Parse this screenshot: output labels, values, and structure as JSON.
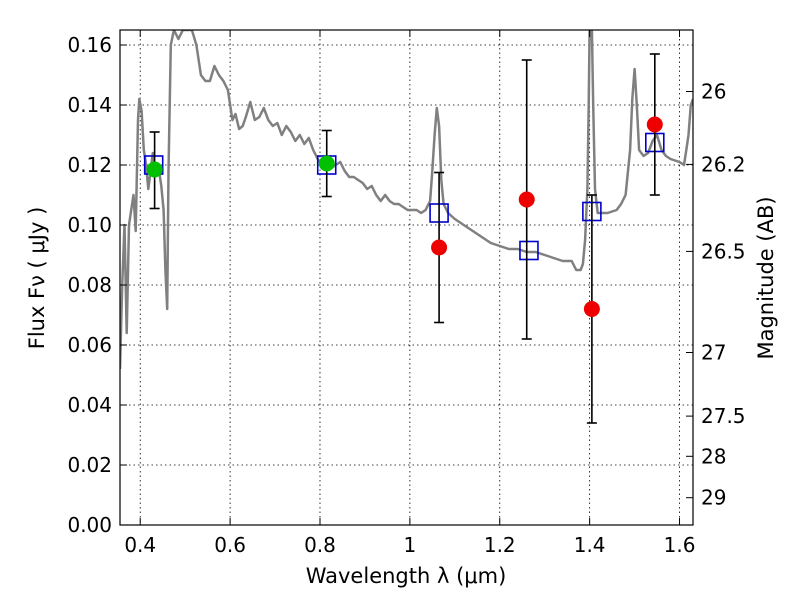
{
  "chart_data": {
    "type": "scatter",
    "xlabel": "Wavelength  λ (μm)",
    "ylabel": "Flux  Fν  ( μJy )",
    "ylabel_right": "Magnitude (AB)",
    "xlim": [
      0.355,
      1.63
    ],
    "ylim": [
      0.0,
      0.165
    ],
    "grid": true,
    "x_ticks": [
      {
        "value": 0.4,
        "label": "0.4"
      },
      {
        "value": 0.6,
        "label": "0.6"
      },
      {
        "value": 0.8,
        "label": "0.8"
      },
      {
        "value": 1.0,
        "label": "1"
      },
      {
        "value": 1.2,
        "label": "1.2"
      },
      {
        "value": 1.4,
        "label": "1.4"
      },
      {
        "value": 1.6,
        "label": "1.6"
      }
    ],
    "y_ticks": [
      {
        "value": 0.0,
        "label": "0.00"
      },
      {
        "value": 0.02,
        "label": "0.02"
      },
      {
        "value": 0.04,
        "label": "0.04"
      },
      {
        "value": 0.06,
        "label": "0.06"
      },
      {
        "value": 0.08,
        "label": "0.08"
      },
      {
        "value": 0.1,
        "label": "0.10"
      },
      {
        "value": 0.12,
        "label": "0.12"
      },
      {
        "value": 0.14,
        "label": "0.14"
      },
      {
        "value": 0.16,
        "label": "0.16"
      }
    ],
    "right_ticks": [
      {
        "flux": 0.1445,
        "label": "26"
      },
      {
        "flux": 0.1202,
        "label": "26.2"
      },
      {
        "flux": 0.0912,
        "label": "26.5"
      },
      {
        "flux": 0.0575,
        "label": "27"
      },
      {
        "flux": 0.0363,
        "label": "27.5"
      },
      {
        "flux": 0.0229,
        "label": "28"
      },
      {
        "flux": 0.0091,
        "label": "29"
      }
    ],
    "series": [
      {
        "name": "model_spectrum",
        "kind": "line",
        "color": "#808080",
        "points": [
          [
            0.355,
            0.052
          ],
          [
            0.36,
            0.08
          ],
          [
            0.365,
            0.1
          ],
          [
            0.37,
            0.064
          ],
          [
            0.375,
            0.1
          ],
          [
            0.38,
            0.105
          ],
          [
            0.385,
            0.11
          ],
          [
            0.39,
            0.098
          ],
          [
            0.395,
            0.135
          ],
          [
            0.398,
            0.142
          ],
          [
            0.403,
            0.138
          ],
          [
            0.408,
            0.125
          ],
          [
            0.413,
            0.12
          ],
          [
            0.418,
            0.112
          ],
          [
            0.423,
            0.118
          ],
          [
            0.428,
            0.124
          ],
          [
            0.432,
            0.12
          ],
          [
            0.437,
            0.12
          ],
          [
            0.442,
            0.118
          ],
          [
            0.447,
            0.113
          ],
          [
            0.452,
            0.105
          ],
          [
            0.456,
            0.085
          ],
          [
            0.46,
            0.072
          ],
          [
            0.463,
            0.118
          ],
          [
            0.468,
            0.16
          ],
          [
            0.475,
            0.165
          ],
          [
            0.485,
            0.162
          ],
          [
            0.495,
            0.165
          ],
          [
            0.505,
            0.165
          ],
          [
            0.515,
            0.165
          ],
          [
            0.525,
            0.16
          ],
          [
            0.535,
            0.15
          ],
          [
            0.545,
            0.148
          ],
          [
            0.555,
            0.148
          ],
          [
            0.565,
            0.153
          ],
          [
            0.575,
            0.15
          ],
          [
            0.585,
            0.148
          ],
          [
            0.595,
            0.145
          ],
          [
            0.605,
            0.135
          ],
          [
            0.612,
            0.137
          ],
          [
            0.62,
            0.132
          ],
          [
            0.628,
            0.133
          ],
          [
            0.635,
            0.136
          ],
          [
            0.645,
            0.141
          ],
          [
            0.655,
            0.135
          ],
          [
            0.665,
            0.136
          ],
          [
            0.675,
            0.139
          ],
          [
            0.685,
            0.135
          ],
          [
            0.695,
            0.133
          ],
          [
            0.705,
            0.134
          ],
          [
            0.715,
            0.13
          ],
          [
            0.725,
            0.133
          ],
          [
            0.735,
            0.131
          ],
          [
            0.745,
            0.128
          ],
          [
            0.755,
            0.13
          ],
          [
            0.765,
            0.127
          ],
          [
            0.775,
            0.129
          ],
          [
            0.785,
            0.125
          ],
          [
            0.795,
            0.122
          ],
          [
            0.805,
            0.12
          ],
          [
            0.815,
            0.123
          ],
          [
            0.825,
            0.119
          ],
          [
            0.835,
            0.12
          ],
          [
            0.845,
            0.121
          ],
          [
            0.855,
            0.118
          ],
          [
            0.865,
            0.116
          ],
          [
            0.875,
            0.116
          ],
          [
            0.885,
            0.115
          ],
          [
            0.895,
            0.114
          ],
          [
            0.905,
            0.112
          ],
          [
            0.915,
            0.113
          ],
          [
            0.925,
            0.11
          ],
          [
            0.935,
            0.108
          ],
          [
            0.945,
            0.11
          ],
          [
            0.955,
            0.108
          ],
          [
            0.965,
            0.107
          ],
          [
            0.975,
            0.107
          ],
          [
            0.985,
            0.106
          ],
          [
            0.995,
            0.105
          ],
          [
            1.005,
            0.105
          ],
          [
            1.015,
            0.105
          ],
          [
            1.025,
            0.104
          ],
          [
            1.035,
            0.105
          ],
          [
            1.045,
            0.108
          ],
          [
            1.05,
            0.118
          ],
          [
            1.055,
            0.13
          ],
          [
            1.06,
            0.139
          ],
          [
            1.065,
            0.133
          ],
          [
            1.07,
            0.115
          ],
          [
            1.075,
            0.107
          ],
          [
            1.085,
            0.104
          ],
          [
            1.1,
            0.102
          ],
          [
            1.12,
            0.1
          ],
          [
            1.14,
            0.098
          ],
          [
            1.16,
            0.096
          ],
          [
            1.18,
            0.094
          ],
          [
            1.2,
            0.093
          ],
          [
            1.22,
            0.092
          ],
          [
            1.24,
            0.092
          ],
          [
            1.26,
            0.091
          ],
          [
            1.28,
            0.091
          ],
          [
            1.3,
            0.09
          ],
          [
            1.32,
            0.089
          ],
          [
            1.34,
            0.088
          ],
          [
            1.36,
            0.088
          ],
          [
            1.37,
            0.085
          ],
          [
            1.38,
            0.085
          ],
          [
            1.385,
            0.087
          ],
          [
            1.39,
            0.095
          ],
          [
            1.395,
            0.112
          ],
          [
            1.398,
            0.14
          ],
          [
            1.4,
            0.165
          ],
          [
            1.405,
            0.165
          ],
          [
            1.408,
            0.14
          ],
          [
            1.412,
            0.112
          ],
          [
            1.418,
            0.104
          ],
          [
            1.425,
            0.104
          ],
          [
            1.44,
            0.104
          ],
          [
            1.46,
            0.105
          ],
          [
            1.47,
            0.107
          ],
          [
            1.48,
            0.11
          ],
          [
            1.49,
            0.125
          ],
          [
            1.495,
            0.142
          ],
          [
            1.5,
            0.152
          ],
          [
            1.505,
            0.14
          ],
          [
            1.51,
            0.125
          ],
          [
            1.52,
            0.123
          ],
          [
            1.53,
            0.124
          ],
          [
            1.54,
            0.128
          ],
          [
            1.55,
            0.13
          ],
          [
            1.56,
            0.125
          ],
          [
            1.57,
            0.123
          ],
          [
            1.58,
            0.122
          ],
          [
            1.6,
            0.121
          ],
          [
            1.61,
            0.12
          ],
          [
            1.615,
            0.125
          ],
          [
            1.62,
            0.13
          ],
          [
            1.625,
            0.14
          ],
          [
            1.63,
            0.142
          ]
        ]
      },
      {
        "name": "model_photometry",
        "kind": "square",
        "color": "#0000cc",
        "points": [
          [
            0.43,
            0.12
          ],
          [
            0.815,
            0.12
          ],
          [
            1.065,
            0.104
          ],
          [
            1.265,
            0.0915
          ],
          [
            1.405,
            0.1045
          ],
          [
            1.545,
            0.1275
          ]
        ]
      },
      {
        "name": "detections",
        "kind": "circle",
        "color": "#00c000",
        "points": [
          {
            "x": 0.432,
            "y": 0.1185,
            "lo": 0.1055,
            "hi": 0.131
          },
          {
            "x": 0.815,
            "y": 0.1205,
            "lo": 0.1095,
            "hi": 0.1315
          }
        ]
      },
      {
        "name": "non_detections",
        "kind": "circle",
        "color": "#ee0000",
        "points": [
          {
            "x": 1.065,
            "y": 0.0925,
            "lo": 0.0675,
            "hi": 0.1175
          },
          {
            "x": 1.26,
            "y": 0.1085,
            "lo": 0.062,
            "hi": 0.155
          },
          {
            "x": 1.405,
            "y": 0.072,
            "lo": 0.034,
            "hi": 0.11
          },
          {
            "x": 1.545,
            "y": 0.1335,
            "lo": 0.11,
            "hi": 0.157
          }
        ]
      }
    ]
  }
}
